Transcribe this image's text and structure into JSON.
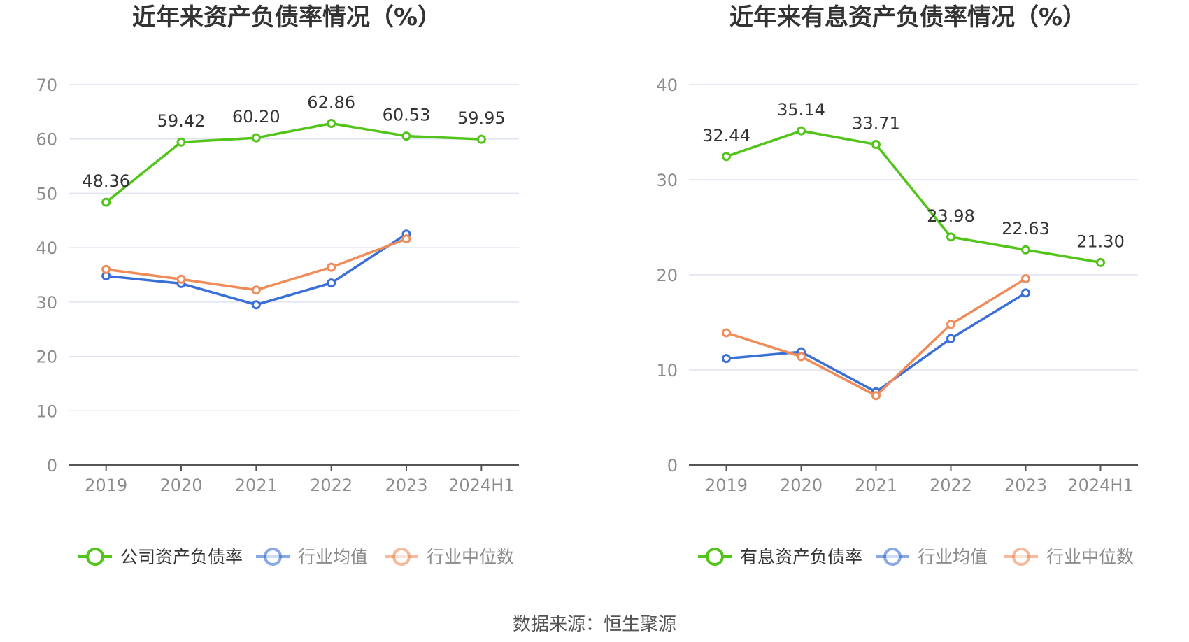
{
  "colors": {
    "company": "#52c41a",
    "industry_avg": "#3a6fd8",
    "industry_median": "#f08c5a",
    "grid": "#dfe4f0",
    "axis_text": "#8c8c8c",
    "title_text": "#333333",
    "label_text": "#333333"
  },
  "source_text": "数据来源：恒生聚源",
  "chart_data": [
    {
      "type": "line",
      "title": "近年来资产负债率情况（%）",
      "categories": [
        "2019",
        "2020",
        "2021",
        "2022",
        "2023",
        "2024H1"
      ],
      "ylim": [
        0,
        70
      ],
      "yticks": [
        0,
        10,
        20,
        30,
        40,
        50,
        60,
        70
      ],
      "series": [
        {
          "key": "company",
          "name": "公司资产负债率",
          "values": [
            48.36,
            59.42,
            60.2,
            62.86,
            60.53,
            59.95
          ],
          "labels": [
            "48.36",
            "59.42",
            "60.20",
            "62.86",
            "60.53",
            "59.95"
          ]
        },
        {
          "key": "industry_avg",
          "name": "行业均值",
          "values": [
            34.8,
            33.4,
            29.5,
            33.5,
            42.5,
            null
          ]
        },
        {
          "key": "industry_median",
          "name": "行业中位数",
          "values": [
            36.0,
            34.2,
            32.2,
            36.4,
            41.6,
            null
          ]
        }
      ],
      "legend_position": "bottom"
    },
    {
      "type": "line",
      "title": "近年来有息资产负债率情况（%）",
      "categories": [
        "2019",
        "2020",
        "2021",
        "2022",
        "2023",
        "2024H1"
      ],
      "ylim": [
        0,
        40
      ],
      "yticks": [
        0,
        10,
        20,
        30,
        40
      ],
      "series": [
        {
          "key": "company",
          "name": "有息资产负债率",
          "values": [
            32.44,
            35.14,
            33.71,
            23.98,
            22.63,
            21.3
          ],
          "labels": [
            "32.44",
            "35.14",
            "33.71",
            "23.98",
            "22.63",
            "21.30"
          ]
        },
        {
          "key": "industry_avg",
          "name": "行业均值",
          "values": [
            11.2,
            11.9,
            7.7,
            13.3,
            18.1,
            null
          ]
        },
        {
          "key": "industry_median",
          "name": "行业中位数",
          "values": [
            13.9,
            11.4,
            7.3,
            14.8,
            19.6,
            null
          ]
        }
      ],
      "legend_position": "bottom"
    }
  ]
}
